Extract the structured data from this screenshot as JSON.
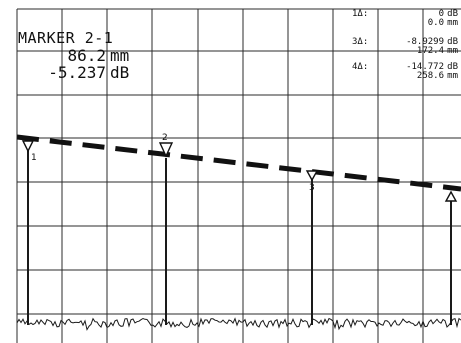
{
  "marker_readout": {
    "title": "MARKER 2-1",
    "position_value": "86.2",
    "position_unit": "mm",
    "level_value": "-5.237",
    "level_unit": "dB"
  },
  "delta_table": [
    {
      "label": "1Δ:",
      "value": "0",
      "unit": "dB",
      "position": "0.0",
      "position_unit": "mm"
    },
    {
      "label": "3Δ:",
      "value": "-8.9299",
      "unit": "dB",
      "position": "172.4",
      "position_unit": "mm"
    },
    {
      "label": "4Δ:",
      "value": "-14.772",
      "unit": "dB",
      "position": "258.6",
      "position_unit": "mm"
    }
  ],
  "markers": [
    {
      "id": "1"
    },
    {
      "id": "2"
    },
    {
      "id": "3"
    },
    {
      "id": "4"
    }
  ],
  "colors": {
    "trace": "#1a1a1a",
    "grid": "#2b2b2b",
    "background": "#ffffff"
  }
}
